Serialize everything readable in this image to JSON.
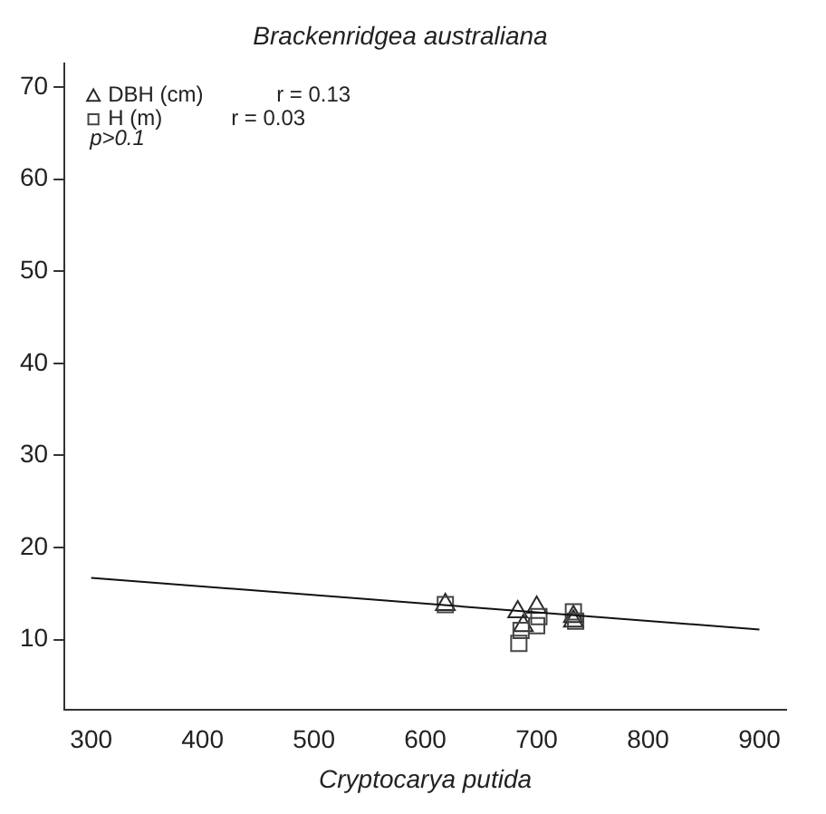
{
  "chart_data": {
    "type": "scatter",
    "title": "Brackenridgea australiana",
    "xlabel": "Cryptocarya putida",
    "xlim": [
      276,
      924
    ],
    "xticks": [
      300,
      400,
      500,
      600,
      700,
      800,
      900
    ],
    "ylim": [
      2.4,
      72.6
    ],
    "yticks": [
      10,
      20,
      30,
      40,
      50,
      60,
      70
    ],
    "grid": false,
    "legend": "top left",
    "series": [
      {
        "name": "DBH (cm)",
        "color": "#2a2a2a",
        "marker": "triangle",
        "x": [
          618,
          683,
          688,
          700,
          733,
          733
        ],
        "values": [
          13.8,
          13,
          11.5,
          13.5,
          12.5,
          12
        ]
      },
      {
        "name": "H (m)",
        "color": "#454545",
        "marker": "square",
        "x": [
          618,
          684,
          686,
          700,
          702,
          733,
          735
        ],
        "values": [
          13.8,
          9.6,
          11,
          11.5,
          12.5,
          13,
          12
        ]
      },
      {
        "type": "line",
        "color": "#111111",
        "marker": "none",
        "x": [
          300,
          900
        ],
        "values": [
          16.7,
          11.1
        ]
      }
    ],
    "annotations": [
      "r = 0.13",
      "r = 0.03",
      "p>0.1"
    ]
  }
}
